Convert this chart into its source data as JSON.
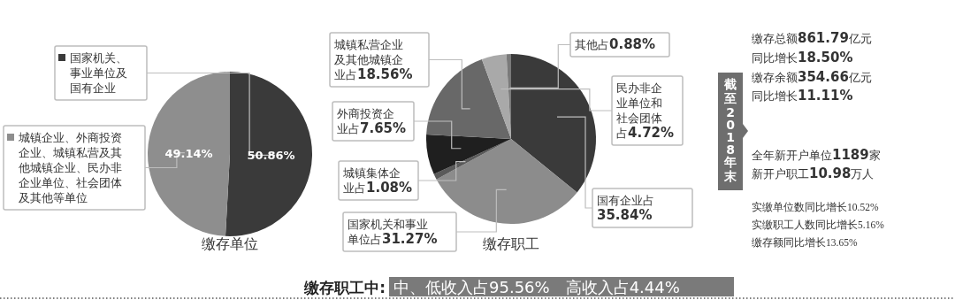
{
  "chart_data": [
    {
      "type": "pie",
      "title": "缴存单位",
      "categories": [
        "国家机关、事业单位及国有企业",
        "城镇企业、外商投资企业、城镇私营及其他城镇企业、民办非企业单位、社会团体及其他等单位"
      ],
      "values": [
        50.86,
        49.14
      ],
      "colors": [
        "#3a3a3a",
        "#8e8e8e"
      ],
      "value_labels": [
        "50.86%",
        "49.14%"
      ],
      "legend": "left"
    },
    {
      "type": "pie",
      "title": "缴存职工",
      "categories": [
        "国有企业占",
        "国家机关和事业单位占",
        "城镇集体企业占",
        "外商投资企业占",
        "城镇私营企业及其他城镇企业占",
        "民办非企业单位和社会团体占",
        "其他占"
      ],
      "values": [
        35.84,
        31.27,
        1.08,
        7.65,
        18.56,
        4.72,
        0.88
      ],
      "colors": [
        "#3a3a3a",
        "#8c8c8c",
        "#5a5a5a",
        "#1f1f1f",
        "#686868",
        "#a9a9a9",
        "#7a7a7a"
      ],
      "value_labels": [
        "35.84%",
        "31.27%",
        "1.08%",
        "7.65%",
        "18.56%",
        "4.72%",
        "0.88%"
      ]
    },
    {
      "type": "other",
      "title": "截至2018年末",
      "annotations": [
        "缴存总额861.79亿元",
        "同比增长18.50%",
        "缴存余额354.66亿元",
        "同比增长11.11%",
        "全年新开户单位1189家",
        "新开户职工10.98万人",
        "实缴单位数同比增长10.52%",
        "实缴职工人数同比增长5.16%",
        "缴存额同比增长13.65%"
      ]
    },
    {
      "type": "other",
      "title": "缴存职工中:",
      "annotations": [
        "中、低收入占95.56%　高收入占4.44%"
      ]
    }
  ]
}
